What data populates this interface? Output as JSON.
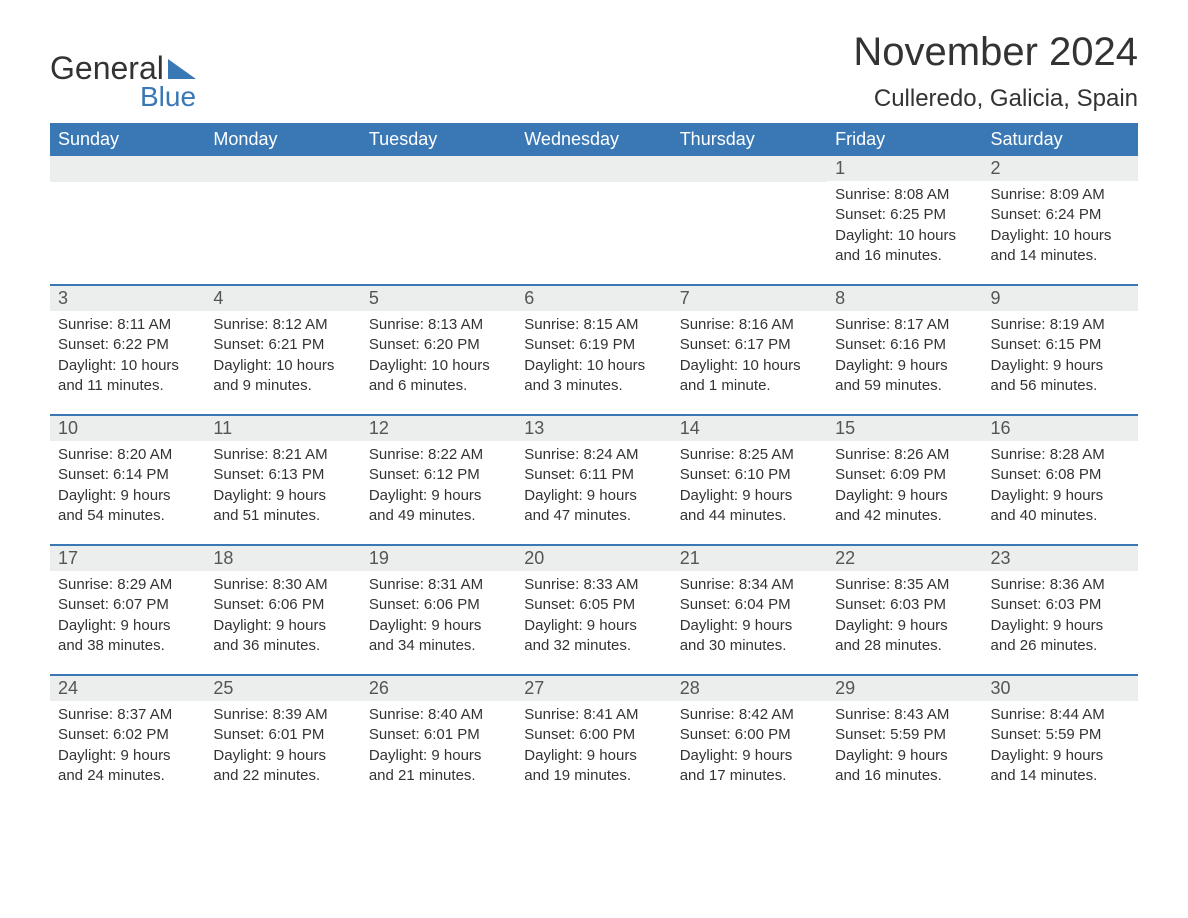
{
  "logo": {
    "word1": "General",
    "word2": "Blue",
    "triangle_color": "#3a78b5"
  },
  "title": "November 2024",
  "location": "Culleredo, Galicia, Spain",
  "colors": {
    "header_bg": "#3a78b5",
    "header_text": "#ffffff",
    "daynum_bg": "#eceded",
    "week_border": "#3a78b5",
    "body_text": "#333333"
  },
  "day_labels": [
    "Sunday",
    "Monday",
    "Tuesday",
    "Wednesday",
    "Thursday",
    "Friday",
    "Saturday"
  ],
  "weeks": [
    [
      {
        "empty": true
      },
      {
        "empty": true
      },
      {
        "empty": true
      },
      {
        "empty": true
      },
      {
        "empty": true
      },
      {
        "n": "1",
        "sunrise": "Sunrise: 8:08 AM",
        "sunset": "Sunset: 6:25 PM",
        "dl1": "Daylight: 10 hours",
        "dl2": "and 16 minutes."
      },
      {
        "n": "2",
        "sunrise": "Sunrise: 8:09 AM",
        "sunset": "Sunset: 6:24 PM",
        "dl1": "Daylight: 10 hours",
        "dl2": "and 14 minutes."
      }
    ],
    [
      {
        "n": "3",
        "sunrise": "Sunrise: 8:11 AM",
        "sunset": "Sunset: 6:22 PM",
        "dl1": "Daylight: 10 hours",
        "dl2": "and 11 minutes."
      },
      {
        "n": "4",
        "sunrise": "Sunrise: 8:12 AM",
        "sunset": "Sunset: 6:21 PM",
        "dl1": "Daylight: 10 hours",
        "dl2": "and 9 minutes."
      },
      {
        "n": "5",
        "sunrise": "Sunrise: 8:13 AM",
        "sunset": "Sunset: 6:20 PM",
        "dl1": "Daylight: 10 hours",
        "dl2": "and 6 minutes."
      },
      {
        "n": "6",
        "sunrise": "Sunrise: 8:15 AM",
        "sunset": "Sunset: 6:19 PM",
        "dl1": "Daylight: 10 hours",
        "dl2": "and 3 minutes."
      },
      {
        "n": "7",
        "sunrise": "Sunrise: 8:16 AM",
        "sunset": "Sunset: 6:17 PM",
        "dl1": "Daylight: 10 hours",
        "dl2": "and 1 minute."
      },
      {
        "n": "8",
        "sunrise": "Sunrise: 8:17 AM",
        "sunset": "Sunset: 6:16 PM",
        "dl1": "Daylight: 9 hours",
        "dl2": "and 59 minutes."
      },
      {
        "n": "9",
        "sunrise": "Sunrise: 8:19 AM",
        "sunset": "Sunset: 6:15 PM",
        "dl1": "Daylight: 9 hours",
        "dl2": "and 56 minutes."
      }
    ],
    [
      {
        "n": "10",
        "sunrise": "Sunrise: 8:20 AM",
        "sunset": "Sunset: 6:14 PM",
        "dl1": "Daylight: 9 hours",
        "dl2": "and 54 minutes."
      },
      {
        "n": "11",
        "sunrise": "Sunrise: 8:21 AM",
        "sunset": "Sunset: 6:13 PM",
        "dl1": "Daylight: 9 hours",
        "dl2": "and 51 minutes."
      },
      {
        "n": "12",
        "sunrise": "Sunrise: 8:22 AM",
        "sunset": "Sunset: 6:12 PM",
        "dl1": "Daylight: 9 hours",
        "dl2": "and 49 minutes."
      },
      {
        "n": "13",
        "sunrise": "Sunrise: 8:24 AM",
        "sunset": "Sunset: 6:11 PM",
        "dl1": "Daylight: 9 hours",
        "dl2": "and 47 minutes."
      },
      {
        "n": "14",
        "sunrise": "Sunrise: 8:25 AM",
        "sunset": "Sunset: 6:10 PM",
        "dl1": "Daylight: 9 hours",
        "dl2": "and 44 minutes."
      },
      {
        "n": "15",
        "sunrise": "Sunrise: 8:26 AM",
        "sunset": "Sunset: 6:09 PM",
        "dl1": "Daylight: 9 hours",
        "dl2": "and 42 minutes."
      },
      {
        "n": "16",
        "sunrise": "Sunrise: 8:28 AM",
        "sunset": "Sunset: 6:08 PM",
        "dl1": "Daylight: 9 hours",
        "dl2": "and 40 minutes."
      }
    ],
    [
      {
        "n": "17",
        "sunrise": "Sunrise: 8:29 AM",
        "sunset": "Sunset: 6:07 PM",
        "dl1": "Daylight: 9 hours",
        "dl2": "and 38 minutes."
      },
      {
        "n": "18",
        "sunrise": "Sunrise: 8:30 AM",
        "sunset": "Sunset: 6:06 PM",
        "dl1": "Daylight: 9 hours",
        "dl2": "and 36 minutes."
      },
      {
        "n": "19",
        "sunrise": "Sunrise: 8:31 AM",
        "sunset": "Sunset: 6:06 PM",
        "dl1": "Daylight: 9 hours",
        "dl2": "and 34 minutes."
      },
      {
        "n": "20",
        "sunrise": "Sunrise: 8:33 AM",
        "sunset": "Sunset: 6:05 PM",
        "dl1": "Daylight: 9 hours",
        "dl2": "and 32 minutes."
      },
      {
        "n": "21",
        "sunrise": "Sunrise: 8:34 AM",
        "sunset": "Sunset: 6:04 PM",
        "dl1": "Daylight: 9 hours",
        "dl2": "and 30 minutes."
      },
      {
        "n": "22",
        "sunrise": "Sunrise: 8:35 AM",
        "sunset": "Sunset: 6:03 PM",
        "dl1": "Daylight: 9 hours",
        "dl2": "and 28 minutes."
      },
      {
        "n": "23",
        "sunrise": "Sunrise: 8:36 AM",
        "sunset": "Sunset: 6:03 PM",
        "dl1": "Daylight: 9 hours",
        "dl2": "and 26 minutes."
      }
    ],
    [
      {
        "n": "24",
        "sunrise": "Sunrise: 8:37 AM",
        "sunset": "Sunset: 6:02 PM",
        "dl1": "Daylight: 9 hours",
        "dl2": "and 24 minutes."
      },
      {
        "n": "25",
        "sunrise": "Sunrise: 8:39 AM",
        "sunset": "Sunset: 6:01 PM",
        "dl1": "Daylight: 9 hours",
        "dl2": "and 22 minutes."
      },
      {
        "n": "26",
        "sunrise": "Sunrise: 8:40 AM",
        "sunset": "Sunset: 6:01 PM",
        "dl1": "Daylight: 9 hours",
        "dl2": "and 21 minutes."
      },
      {
        "n": "27",
        "sunrise": "Sunrise: 8:41 AM",
        "sunset": "Sunset: 6:00 PM",
        "dl1": "Daylight: 9 hours",
        "dl2": "and 19 minutes."
      },
      {
        "n": "28",
        "sunrise": "Sunrise: 8:42 AM",
        "sunset": "Sunset: 6:00 PM",
        "dl1": "Daylight: 9 hours",
        "dl2": "and 17 minutes."
      },
      {
        "n": "29",
        "sunrise": "Sunrise: 8:43 AM",
        "sunset": "Sunset: 5:59 PM",
        "dl1": "Daylight: 9 hours",
        "dl2": "and 16 minutes."
      },
      {
        "n": "30",
        "sunrise": "Sunrise: 8:44 AM",
        "sunset": "Sunset: 5:59 PM",
        "dl1": "Daylight: 9 hours",
        "dl2": "and 14 minutes."
      }
    ]
  ]
}
